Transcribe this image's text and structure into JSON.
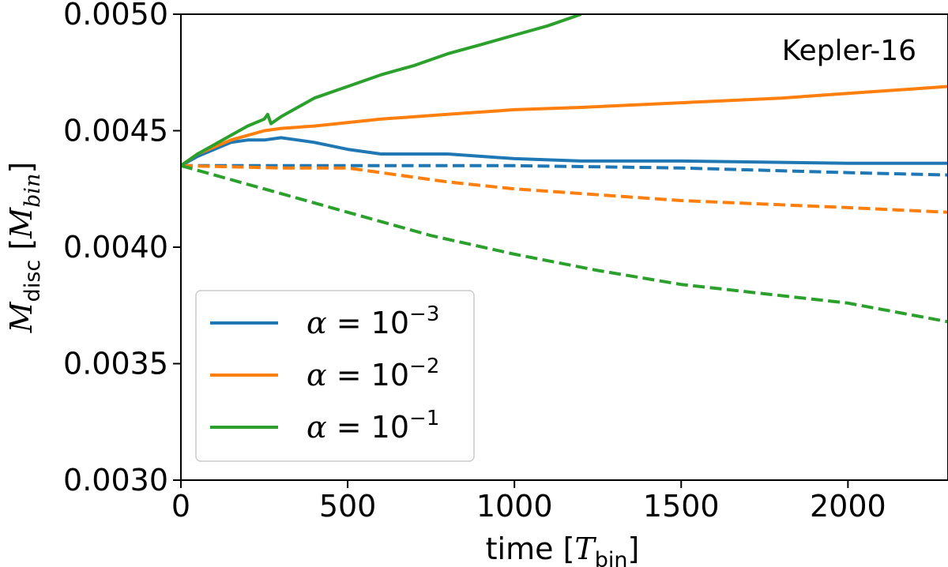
{
  "chart_data": {
    "type": "line",
    "xlabel": {
      "symbol": "time [",
      "var": "T",
      "sub": "bin",
      "close": "]"
    },
    "ylabel": {
      "var": "M",
      "sub": "disc",
      "open": "[",
      "var2": "M",
      "sub2": "bin",
      "close": "]"
    },
    "xlim": [
      0,
      2300
    ],
    "ylim": [
      0.003,
      0.005
    ],
    "xticks": [
      0,
      500,
      1000,
      1500,
      2000
    ],
    "xtick_labels": [
      "0",
      "500",
      "1000",
      "1500",
      "2000"
    ],
    "yticks": [
      0.003,
      0.0035,
      0.004,
      0.0045,
      0.005
    ],
    "ytick_labels": [
      "0.0030",
      "0.0035",
      "0.0040",
      "0.0045",
      "0.0050"
    ],
    "grid": false,
    "legend_placement": "lower-left",
    "annotation": "Kepler-16",
    "series": [
      {
        "name": "α = 10⁻³",
        "legend": {
          "alpha": "α",
          "eq": " = 10",
          "exp": "−3"
        },
        "color": "#1f77b4",
        "style": "solid",
        "x": [
          0,
          50,
          100,
          150,
          200,
          250,
          300,
          350,
          400,
          500,
          600,
          800,
          1000,
          1200,
          1500,
          2000,
          2300
        ],
        "y": [
          0.00435,
          0.00439,
          0.00442,
          0.00445,
          0.00446,
          0.00446,
          0.00447,
          0.00446,
          0.00445,
          0.00442,
          0.0044,
          0.0044,
          0.00438,
          0.00437,
          0.00437,
          0.00436,
          0.00436
        ]
      },
      {
        "name": "α = 10⁻³ (dashed)",
        "color": "#1f77b4",
        "style": "dashed",
        "x": [
          0,
          500,
          1000,
          1500,
          2000,
          2300
        ],
        "y": [
          0.00435,
          0.00435,
          0.00435,
          0.00434,
          0.00432,
          0.00431
        ]
      },
      {
        "name": "α = 10⁻²",
        "legend": {
          "alpha": "α",
          "eq": " = 10",
          "exp": "−2"
        },
        "color": "#ff7f0e",
        "style": "solid",
        "x": [
          0,
          50,
          100,
          150,
          200,
          250,
          300,
          400,
          600,
          800,
          1000,
          1200,
          1500,
          1800,
          2000,
          2300
        ],
        "y": [
          0.00435,
          0.0044,
          0.00443,
          0.00446,
          0.00448,
          0.0045,
          0.00451,
          0.00452,
          0.00455,
          0.00457,
          0.00459,
          0.0046,
          0.00462,
          0.00464,
          0.00466,
          0.00469
        ]
      },
      {
        "name": "α = 10⁻² (dashed)",
        "color": "#ff7f0e",
        "style": "dashed",
        "x": [
          0,
          300,
          500,
          800,
          1000,
          1500,
          2000,
          2300
        ],
        "y": [
          0.00435,
          0.00434,
          0.00434,
          0.00428,
          0.00425,
          0.0042,
          0.00417,
          0.00415
        ]
      },
      {
        "name": "α = 10⁻¹",
        "legend": {
          "alpha": "α",
          "eq": " = 10",
          "exp": "−1"
        },
        "color": "#2ca02c",
        "style": "solid",
        "x": [
          0,
          50,
          100,
          150,
          200,
          250,
          260,
          270,
          300,
          400,
          500,
          600,
          700,
          800,
          900,
          1000,
          1100,
          1200
        ],
        "y": [
          0.00435,
          0.0044,
          0.00444,
          0.00448,
          0.00452,
          0.00455,
          0.00457,
          0.00453,
          0.00456,
          0.00464,
          0.00469,
          0.00474,
          0.00478,
          0.00483,
          0.00487,
          0.00491,
          0.00495,
          0.005
        ]
      },
      {
        "name": "α = 10⁻¹ (dashed)",
        "color": "#2ca02c",
        "style": "dashed",
        "x": [
          0,
          250,
          500,
          750,
          1000,
          1250,
          1500,
          1750,
          2000,
          2300
        ],
        "y": [
          0.00435,
          0.00425,
          0.00415,
          0.00405,
          0.00397,
          0.0039,
          0.00384,
          0.0038,
          0.00376,
          0.00368
        ]
      }
    ]
  }
}
